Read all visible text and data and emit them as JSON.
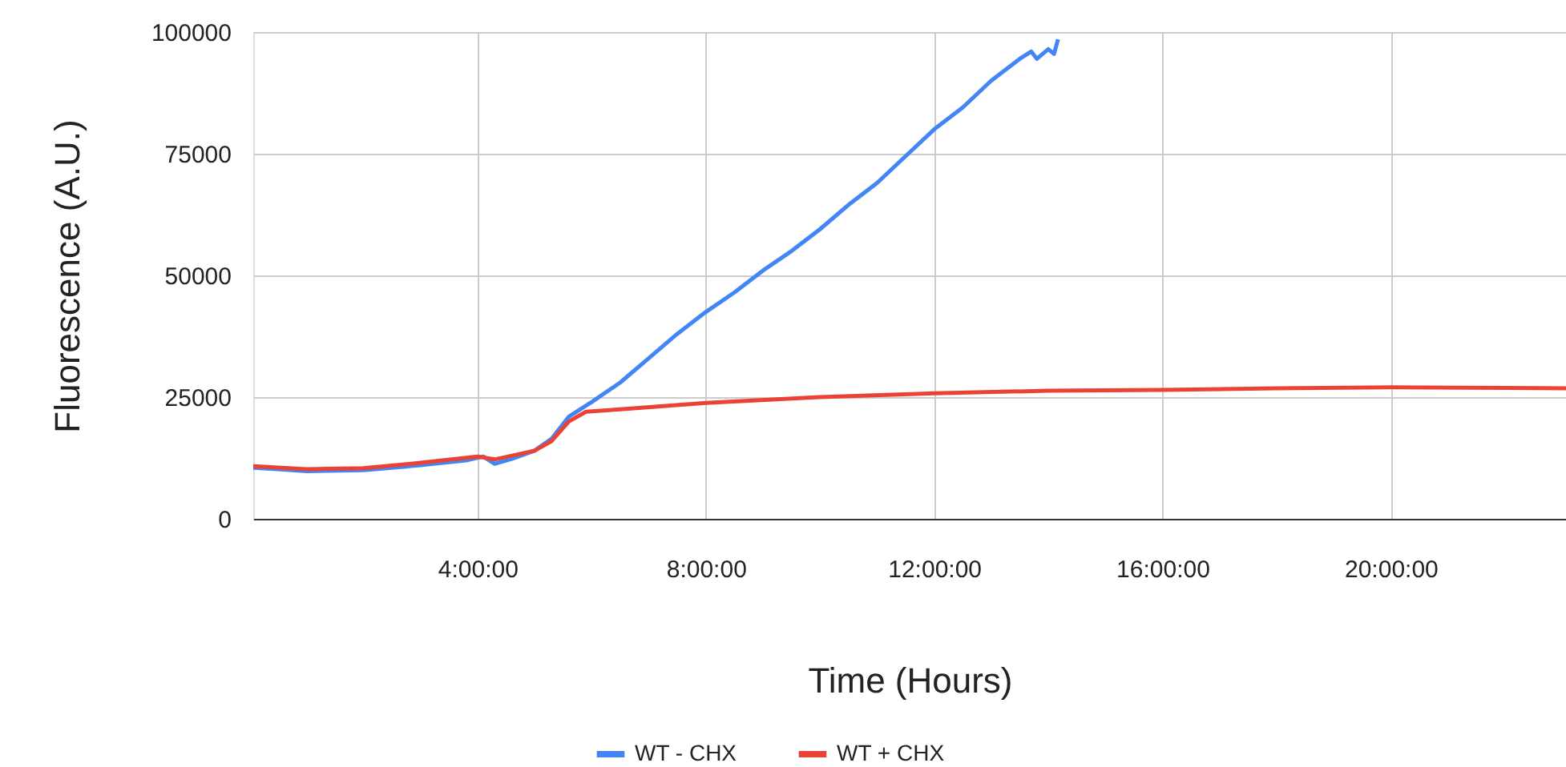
{
  "chart_data": {
    "type": "line",
    "xlabel": "Time (Hours)",
    "ylabel": "Fluorescence (A.U.)",
    "xlim": [
      0.07,
      23.07
    ],
    "ylim": [
      0,
      100000
    ],
    "xticks": [
      {
        "value": 4,
        "label": "4:00:00"
      },
      {
        "value": 8,
        "label": "8:00:00"
      },
      {
        "value": 12,
        "label": "12:00:00"
      },
      {
        "value": 16,
        "label": "16:00:00"
      },
      {
        "value": 20,
        "label": "20:00:00"
      }
    ],
    "yticks": [
      0,
      25000,
      50000,
      75000,
      100000
    ],
    "grid": true,
    "legend": "bottom",
    "marker": "none",
    "line_style": "solid",
    "series": [
      {
        "name": "WT - CHX",
        "color": "#4285f4",
        "x": [
          0.07,
          0.5,
          1,
          2,
          3,
          3.8,
          4.1,
          4.3,
          4.6,
          5,
          5.3,
          5.6,
          6,
          6.5,
          7,
          7.5,
          8,
          8.5,
          9,
          9.5,
          10,
          10.5,
          11,
          11.5,
          12,
          12.5,
          13,
          13.5,
          13.7,
          13.8,
          14,
          14.1,
          14.17
        ],
        "values": [
          10500,
          10200,
          9800,
          10000,
          11000,
          12000,
          12800,
          11300,
          12300,
          14000,
          16500,
          21000,
          24000,
          28000,
          33000,
          38000,
          42500,
          46500,
          51000,
          55000,
          59500,
          64500,
          69000,
          74500,
          80000,
          84500,
          90000,
          94500,
          96000,
          94500,
          96500,
          95500,
          98500
        ]
      },
      {
        "name": "WT + CHX",
        "color": "#ea4335",
        "x": [
          0.07,
          1,
          2,
          3,
          4,
          4.3,
          5,
          5.3,
          5.6,
          5.9,
          6.5,
          8,
          10,
          12,
          14,
          16,
          18,
          20,
          22,
          23.07
        ],
        "values": [
          10800,
          10200,
          10400,
          11500,
          12800,
          12200,
          14000,
          16000,
          20000,
          22000,
          22500,
          23800,
          25000,
          25800,
          26300,
          26500,
          26800,
          27000,
          26900,
          26800
        ]
      }
    ]
  }
}
